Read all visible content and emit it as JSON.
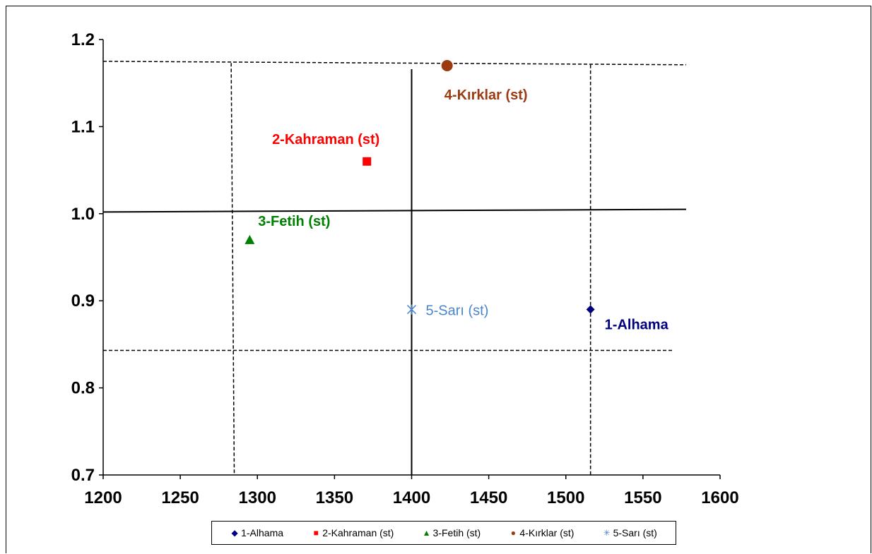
{
  "chart_data": {
    "type": "scatter",
    "title": "",
    "xlabel": "",
    "ylabel": "",
    "xlim": [
      1200,
      1600
    ],
    "ylim": [
      0.7,
      1.2
    ],
    "x_ticks": [
      "1200",
      "1250",
      "1300",
      "1350",
      "1400",
      "1450",
      "1500",
      "1550",
      "1600"
    ],
    "y_ticks": [
      "0.7",
      "0.8",
      "0.9",
      "1.0",
      "1.1",
      "1.2"
    ],
    "grid": false,
    "legend_position": "bottom",
    "series": [
      {
        "name": "1-Alhama",
        "label": "1-Alhama",
        "marker": "diamond",
        "color": "#00007f",
        "label_bold": true,
        "x": 1516,
        "y": 0.89
      },
      {
        "name": "2-Kahraman (st)",
        "label": "2-Kahraman (st)",
        "marker": "square",
        "color": "#ff0000",
        "label_bold": true,
        "x": 1371,
        "y": 1.06
      },
      {
        "name": "3-Fetih (st)",
        "label": "3-Fetih (st)",
        "marker": "triangle",
        "color": "#008000",
        "label_bold": true,
        "x": 1295,
        "y": 0.97
      },
      {
        "name": "4-Kırklar (st)",
        "label": "4-Kırklar (st)",
        "marker": "circle",
        "color": "#9b3b12",
        "label_bold": true,
        "x": 1423,
        "y": 1.17
      },
      {
        "name": "5-Sarı (st)",
        "label": "5-Sarı (st)",
        "marker": "star",
        "color": "#4a86c8",
        "label_bold": false,
        "x": 1400,
        "y": 0.89
      }
    ],
    "reference_lines": [
      {
        "style": "solid",
        "orientation": "horizontal",
        "from": [
          1200,
          1.002
        ],
        "to": [
          1578,
          1.005
        ]
      },
      {
        "style": "solid",
        "orientation": "vertical",
        "from": [
          1400,
          0.7
        ],
        "to": [
          1400,
          1.166
        ]
      },
      {
        "style": "dashed",
        "orientation": "horizontal",
        "from": [
          1200,
          1.175
        ],
        "to": [
          1578,
          1.171
        ]
      },
      {
        "style": "dashed",
        "orientation": "horizontal",
        "from": [
          1200,
          0.843
        ],
        "to": [
          1570,
          0.843
        ]
      },
      {
        "style": "dashed",
        "orientation": "vertical",
        "from": [
          1283,
          1.173
        ],
        "to": [
          1285,
          0.7
        ]
      },
      {
        "style": "dashed",
        "orientation": "vertical",
        "from": [
          1516,
          1.171
        ],
        "to": [
          1516,
          0.7
        ]
      }
    ]
  },
  "legend": {
    "items": [
      {
        "label": "1-Alhama",
        "glyph": "◆",
        "color": "#00007f"
      },
      {
        "label": "2-Kahraman (st)",
        "glyph": "■",
        "color": "#ff0000"
      },
      {
        "label": "3-Fetih (st)",
        "glyph": "▲",
        "color": "#008000"
      },
      {
        "label": "4-Kırklar (st)",
        "glyph": "●",
        "color": "#9b3b12"
      },
      {
        "label": "5-Sarı (st)",
        "glyph": "✳",
        "color": "#4a86c8"
      }
    ]
  }
}
